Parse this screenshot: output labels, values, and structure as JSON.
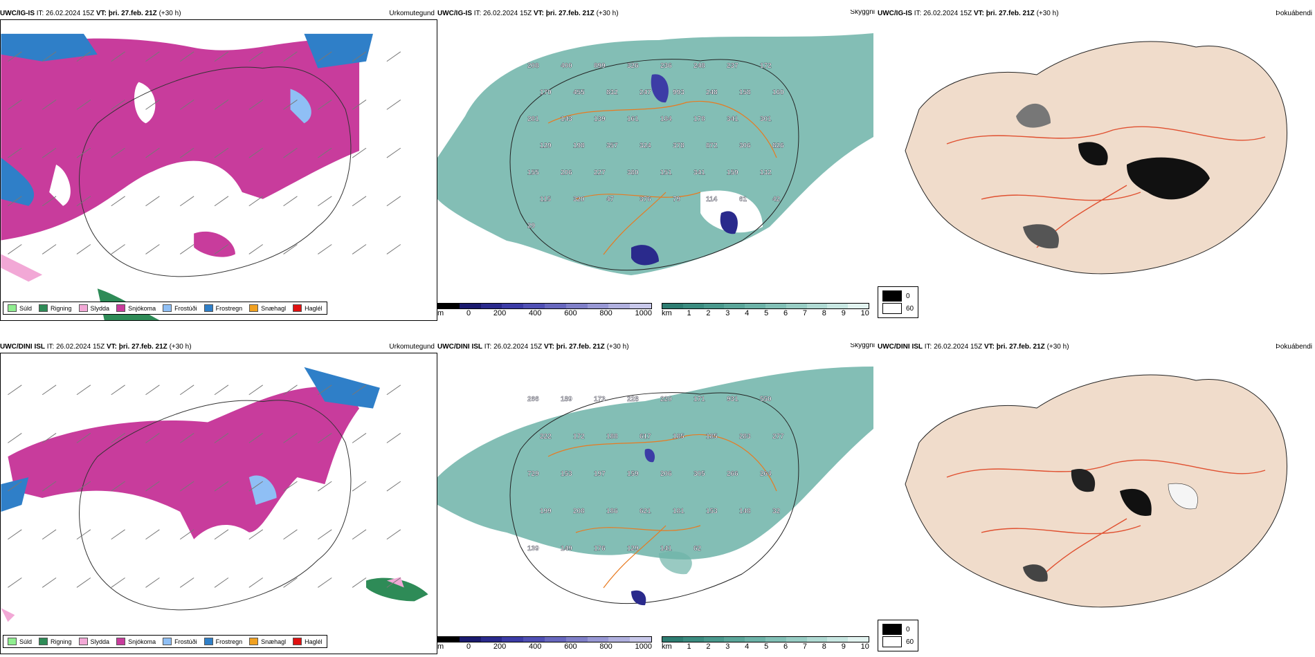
{
  "rows": [
    {
      "precip": {
        "model": "UWC/IG-IS",
        "it_label": "IT:",
        "it": "26.02.2024 15Z",
        "vt_label": "VT:",
        "vt": "þri. 27.feb. 21Z",
        "lead": "(+30 h)",
        "product": "Úrkomutegund"
      },
      "vis": {
        "model": "UWC/IG-IS",
        "it_label": "IT:",
        "it": "26.02.2024 15Z",
        "vt_label": "VT:",
        "vt": "þri. 27.feb. 21Z",
        "lead": "(+30 h)",
        "product": "Skyggni",
        "labels": [
          "208",
          "400",
          "899",
          "326",
          "236",
          "248",
          "237",
          "172",
          "170",
          "455",
          "832",
          "247",
          "993",
          "248",
          "158",
          "160",
          "281",
          "143",
          "139",
          "161",
          "184",
          "178",
          "341",
          "301",
          "129",
          "198",
          "357",
          "324",
          "378",
          "872",
          "306",
          "826",
          "155",
          "206",
          "227",
          "380",
          "151",
          "341",
          "159",
          "132",
          "115",
          "320",
          "47",
          "376",
          "79",
          "114",
          "61",
          "42",
          "29"
        ]
      },
      "fog": {
        "model": "UWC/IG-IS",
        "it_label": "IT:",
        "it": "26.02.2024 15Z",
        "vt_label": "VT:",
        "vt": "þri. 27.feb. 21Z",
        "lead": "(+30 h)",
        "product": "Þokuábendi"
      }
    },
    {
      "precip": {
        "model": "UWC/DINI ISL",
        "it_label": "IT:",
        "it": "26.02.2024 15Z",
        "vt_label": "VT:",
        "vt": "þri. 27.feb. 21Z",
        "lead": "(+30 h)",
        "product": "Úrkomutegund"
      },
      "vis": {
        "model": "UWC/DINI ISL",
        "it_label": "IT:",
        "it": "26.02.2024 15Z",
        "vt_label": "VT:",
        "vt": "þri. 27.feb. 21Z",
        "lead": "(+30 h)",
        "product": "Skyggni",
        "labels": [
          "266",
          "189",
          "173",
          "228",
          "220",
          "171",
          "931",
          "550",
          "222",
          "172",
          "188",
          "617",
          "185",
          "185",
          "283",
          "277",
          "729",
          "153",
          "197",
          "159",
          "206",
          "305",
          "266",
          "264",
          "199",
          "208",
          "186",
          "621",
          "181",
          "153",
          "148",
          "32",
          "139",
          "149",
          "176",
          "129",
          "141",
          "62"
        ]
      },
      "fog": {
        "model": "UWC/DINI ISL",
        "it_label": "IT:",
        "it": "26.02.2024 15Z",
        "vt_label": "VT:",
        "vt": "þri. 27.feb. 21Z",
        "lead": "(+30 h)",
        "product": "Þokuábendi"
      }
    }
  ],
  "precip_legend": [
    {
      "label": "Súld",
      "color": "#90ee90"
    },
    {
      "label": "Rigning",
      "color": "#2e8b57"
    },
    {
      "label": "Slydda",
      "color": "#f2a8d6"
    },
    {
      "label": "Snjókoma",
      "color": "#c83c9c"
    },
    {
      "label": "Frostúði",
      "color": "#8fbff5"
    },
    {
      "label": "Frostregn",
      "color": "#2f7fc8"
    },
    {
      "label": "Snæhagl",
      "color": "#f0a020"
    },
    {
      "label": "Haglél",
      "color": "#e01010"
    }
  ],
  "vis_scale_m": {
    "unit": "m",
    "ticks": [
      "0",
      "200",
      "400",
      "600",
      "800",
      "1000"
    ],
    "colors": [
      "#000000",
      "#1a1a6e",
      "#2a2a8c",
      "#3c3ca6",
      "#5050b4",
      "#6868be",
      "#8080c8",
      "#9898d4",
      "#b0b0de",
      "#c8c8ea"
    ]
  },
  "vis_scale_km": {
    "unit": "km",
    "ticks": [
      "1",
      "2",
      "3",
      "4",
      "5",
      "6",
      "7",
      "8",
      "9",
      "10"
    ],
    "colors": [
      "#2e7d72",
      "#3b8c80",
      "#4a998d",
      "#5ba69a",
      "#6db3a8",
      "#82c0b6",
      "#98cdc4",
      "#b0dad3",
      "#c8e7e2",
      "#e2f3f0"
    ]
  },
  "fog_legend": [
    {
      "label": "0",
      "color": "#000000"
    },
    {
      "label": "60",
      "color": "#ffffff"
    }
  ]
}
